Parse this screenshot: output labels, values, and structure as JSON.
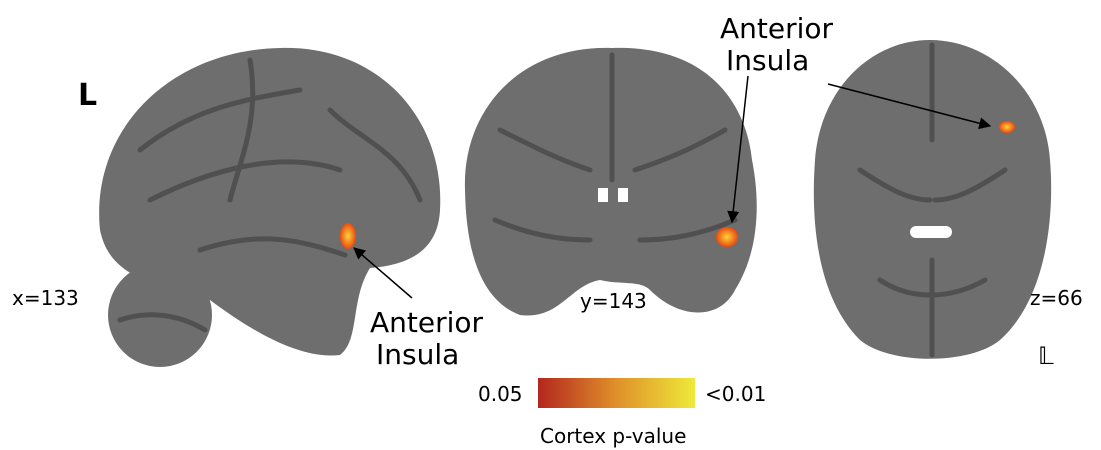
{
  "panels": [
    {
      "slice": "x=133",
      "orientation": "L",
      "annotation": [
        "Anterior",
        "Insula"
      ]
    },
    {
      "slice": "y=143",
      "annotation": [
        "Anterior",
        "Insula"
      ]
    },
    {
      "slice": "z=66",
      "orientation": "𝕃"
    }
  ],
  "colorbar": {
    "min_label": "0.05",
    "max_label": "<0.01",
    "title": "Cortex p-value"
  }
}
